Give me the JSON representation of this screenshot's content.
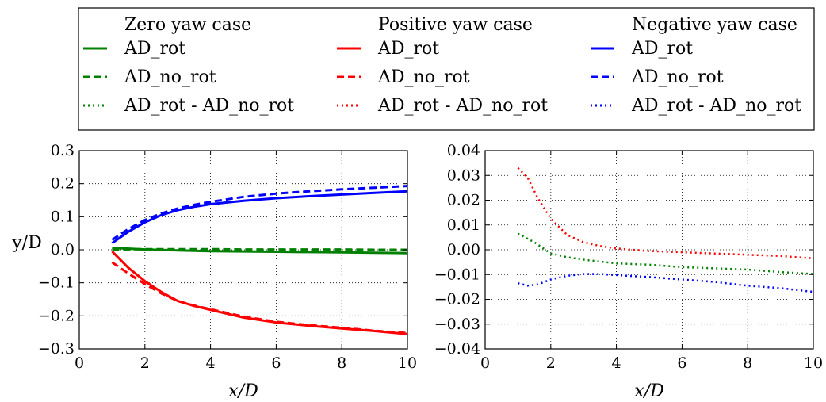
{
  "legend": {
    "columns": [
      {
        "title": "Zero yaw case",
        "color": "#008000",
        "entries": [
          {
            "style": "solid",
            "label": "AD_rot"
          },
          {
            "style": "dashed",
            "label": "AD_no_rot"
          },
          {
            "style": "dotted",
            "label": "AD_rot - AD_no_rot"
          }
        ]
      },
      {
        "title": "Positive yaw case",
        "color": "#ff0000",
        "entries": [
          {
            "style": "solid",
            "label": "AD_rot"
          },
          {
            "style": "dashed",
            "label": "AD_no_rot"
          },
          {
            "style": "dotted",
            "label": "AD_rot - AD_no_rot"
          }
        ]
      },
      {
        "title": "Negative yaw case",
        "color": "#0000ff",
        "entries": [
          {
            "style": "solid",
            "label": "AD_rot"
          },
          {
            "style": "dashed",
            "label": "AD_no_rot"
          },
          {
            "style": "dotted",
            "label": "AD_rot - AD_no_rot"
          }
        ]
      }
    ]
  },
  "chart_data": [
    {
      "type": "line",
      "xlabel": "x/D",
      "ylabel": "y/D",
      "xlim": [
        0,
        10
      ],
      "ylim": [
        -0.3,
        0.3
      ],
      "xticks": [
        0,
        2,
        4,
        6,
        8,
        10
      ],
      "xtick_labels": [
        "0",
        "2",
        "4",
        "6",
        "8",
        "10"
      ],
      "yticks": [
        0.3,
        0.2,
        0.1,
        0.0,
        -0.1,
        -0.2,
        -0.3
      ],
      "ytick_labels": [
        "0.3",
        "0.2",
        "0.1",
        "0.0",
        "−0.1",
        "−0.2",
        "−0.3"
      ],
      "grid": true,
      "series": [
        {
          "name": "Zero yaw case AD_rot",
          "color": "#008000",
          "style": "solid",
          "x": [
            1,
            2,
            3,
            4,
            5,
            6,
            7,
            8,
            9,
            10
          ],
          "y": [
            0.006,
            0.001,
            -0.002,
            -0.004,
            -0.005,
            -0.006,
            -0.007,
            -0.008,
            -0.009,
            -0.01
          ]
        },
        {
          "name": "Zero yaw case AD_no_rot",
          "color": "#008000",
          "style": "dashed",
          "x": [
            1,
            2,
            3,
            4,
            5,
            6,
            7,
            8,
            9,
            10
          ],
          "y": [
            0.001,
            0.002,
            0.002,
            0.002,
            0.001,
            0.001,
            0.001,
            0.001,
            0.0,
            0.0
          ]
        },
        {
          "name": "Positive yaw case AD_rot",
          "color": "#ff0000",
          "style": "solid",
          "x": [
            1,
            1.5,
            2,
            2.5,
            3,
            3.5,
            4,
            5,
            6,
            7,
            8,
            9,
            10
          ],
          "y": [
            -0.005,
            -0.055,
            -0.095,
            -0.128,
            -0.155,
            -0.17,
            -0.182,
            -0.205,
            -0.22,
            -0.23,
            -0.238,
            -0.246,
            -0.255
          ]
        },
        {
          "name": "Positive yaw case AD_no_rot",
          "color": "#ff0000",
          "style": "dashed",
          "x": [
            1,
            1.5,
            2,
            2.5,
            3,
            3.5,
            4,
            5,
            6,
            7,
            8,
            9,
            10
          ],
          "y": [
            -0.038,
            -0.072,
            -0.104,
            -0.132,
            -0.155,
            -0.169,
            -0.18,
            -0.202,
            -0.218,
            -0.228,
            -0.236,
            -0.245,
            -0.252
          ]
        },
        {
          "name": "Negative yaw case AD_rot",
          "color": "#0000ff",
          "style": "solid",
          "x": [
            1,
            1.5,
            2,
            2.5,
            3,
            3.5,
            4,
            5,
            6,
            7,
            8,
            9,
            10
          ],
          "y": [
            0.02,
            0.055,
            0.083,
            0.105,
            0.12,
            0.13,
            0.138,
            0.148,
            0.156,
            0.162,
            0.167,
            0.172,
            0.177
          ]
        },
        {
          "name": "Negative yaw case AD_no_rot",
          "color": "#0000ff",
          "style": "dashed",
          "x": [
            1,
            1.5,
            2,
            2.5,
            3,
            3.5,
            4,
            5,
            6,
            7,
            8,
            9,
            10
          ],
          "y": [
            0.03,
            0.063,
            0.09,
            0.11,
            0.125,
            0.136,
            0.145,
            0.16,
            0.17,
            0.177,
            0.183,
            0.188,
            0.193
          ]
        }
      ]
    },
    {
      "type": "line",
      "xlabel": "x/D",
      "ylabel": "",
      "xlim": [
        0,
        10
      ],
      "ylim": [
        -0.04,
        0.04
      ],
      "xticks": [
        0,
        2,
        4,
        6,
        8,
        10
      ],
      "xtick_labels": [
        "0",
        "2",
        "4",
        "6",
        "8",
        "10"
      ],
      "yticks": [
        0.04,
        0.03,
        0.02,
        0.01,
        0.0,
        -0.01,
        -0.02,
        -0.03,
        -0.04
      ],
      "ytick_labels": [
        "0.04",
        "0.03",
        "0.02",
        "0.01",
        "0.00",
        "−0.01",
        "−0.02",
        "−0.03",
        "−0.04"
      ],
      "grid": true,
      "series": [
        {
          "name": "Zero yaw case AD_rot - AD_no_rot",
          "color": "#008000",
          "style": "dotted",
          "x": [
            1,
            1.5,
            2,
            2.5,
            3,
            4,
            5,
            6,
            7,
            8,
            9,
            10
          ],
          "y": [
            0.0065,
            0.003,
            -0.0015,
            -0.003,
            -0.004,
            -0.0055,
            -0.006,
            -0.007,
            -0.0075,
            -0.008,
            -0.009,
            -0.0098
          ]
        },
        {
          "name": "Positive yaw case AD_rot - AD_no_rot",
          "color": "#ff0000",
          "style": "dotted",
          "x": [
            1,
            1.3,
            1.6,
            2,
            2.5,
            3,
            3.5,
            4,
            5,
            6,
            7,
            8,
            9,
            10
          ],
          "y": [
            0.033,
            0.029,
            0.021,
            0.0125,
            0.006,
            0.003,
            0.0015,
            0.0005,
            -0.0005,
            -0.001,
            -0.0015,
            -0.002,
            -0.0025,
            -0.0035
          ]
        },
        {
          "name": "Negative yaw case AD_rot - AD_no_rot",
          "color": "#0000ff",
          "style": "dotted",
          "x": [
            1,
            1.3,
            1.6,
            2,
            2.5,
            3,
            3.5,
            4,
            5,
            6,
            7,
            8,
            9,
            10
          ],
          "y": [
            -0.0135,
            -0.0145,
            -0.014,
            -0.012,
            -0.0105,
            -0.0098,
            -0.0098,
            -0.0102,
            -0.011,
            -0.012,
            -0.013,
            -0.0145,
            -0.0155,
            -0.017
          ]
        }
      ]
    }
  ]
}
